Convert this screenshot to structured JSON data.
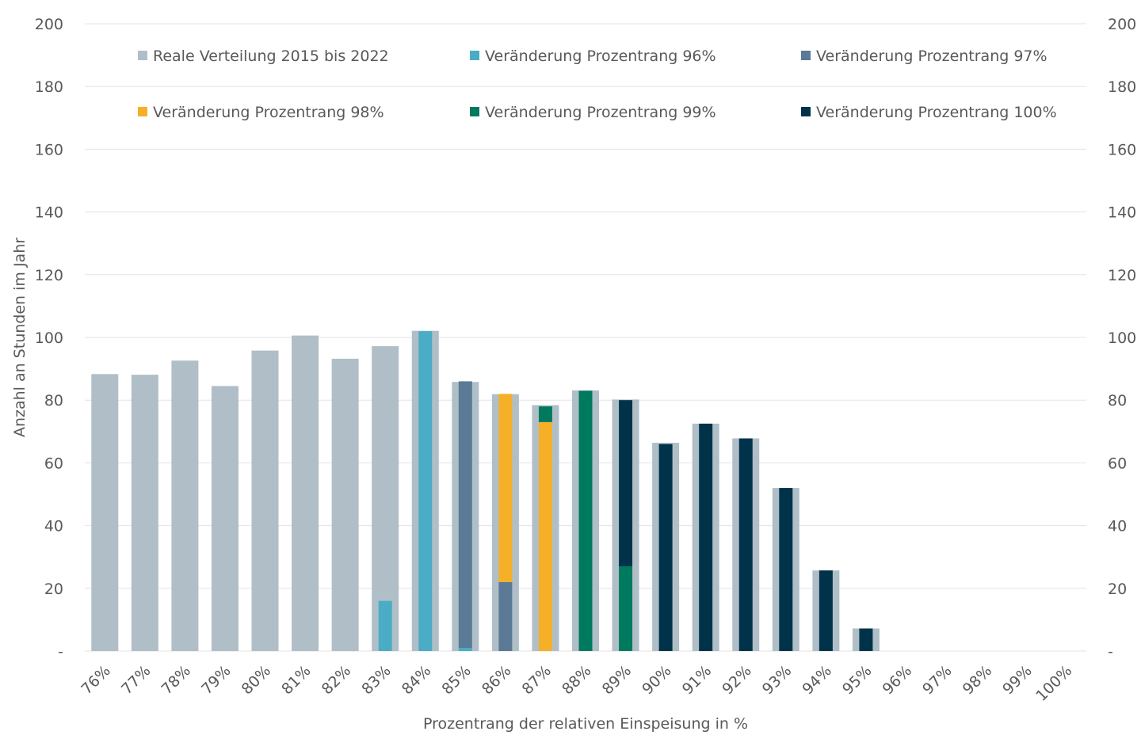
{
  "chart_data": {
    "type": "bar",
    "title": "",
    "xlabel": "Prozentrang der relativen Einspeisung in %",
    "ylabel": "Anzahl an Stunden im Jahr",
    "ylim": [
      0,
      200
    ],
    "yticks": [
      0,
      20,
      40,
      60,
      80,
      100,
      120,
      140,
      160,
      180,
      200
    ],
    "ytick_labels": [
      "-",
      "20",
      "40",
      "60",
      "80",
      "100",
      "120",
      "140",
      "160",
      "180",
      "200"
    ],
    "secondary_y_axis": true,
    "grid": true,
    "legend_position": "top",
    "categories": [
      "76%",
      "77%",
      "78%",
      "79%",
      "80%",
      "81%",
      "82%",
      "83%",
      "84%",
      "85%",
      "86%",
      "87%",
      "88%",
      "89%",
      "90%",
      "91%",
      "92%",
      "93%",
      "94%",
      "95%",
      "96%",
      "97%",
      "98%",
      "99%",
      "100%"
    ],
    "real_distribution": {
      "name": "Reale Verteilung 2015 bis 2022",
      "color": "#b0bfc7",
      "values": [
        88.3,
        88.1,
        92.6,
        84.5,
        95.8,
        100.6,
        93.2,
        97.2,
        102.1,
        85.8,
        81.9,
        78.4,
        83.1,
        80.2,
        66.4,
        72.5,
        67.8,
        52.0,
        25.7,
        7.2,
        0,
        0,
        0,
        0,
        0
      ]
    },
    "change_series": [
      {
        "name": "Veränderung Prozentrang 96%",
        "color": "#4bacc6",
        "values": [
          0,
          0,
          0,
          0,
          0,
          0,
          0,
          16,
          102,
          1,
          0,
          0,
          0,
          0,
          0,
          0,
          0,
          0,
          0,
          0,
          0,
          0,
          0,
          0,
          0
        ]
      },
      {
        "name": "Veränderung Prozentrang 97%",
        "color": "#5a7a96",
        "values": [
          0,
          0,
          0,
          0,
          0,
          0,
          0,
          0,
          0,
          85,
          22,
          0,
          0,
          0,
          0,
          0,
          0,
          0,
          0,
          0,
          0,
          0,
          0,
          0,
          0
        ]
      },
      {
        "name": "Veränderung Prozentrang 98%",
        "color": "#f5b027",
        "values": [
          0,
          0,
          0,
          0,
          0,
          0,
          0,
          0,
          0,
          0,
          60,
          73,
          0,
          0,
          0,
          0,
          0,
          0,
          0,
          0,
          0,
          0,
          0,
          0,
          0
        ]
      },
      {
        "name": "Veränderung Prozentrang 99%",
        "color": "#007a5e",
        "values": [
          0,
          0,
          0,
          0,
          0,
          0,
          0,
          0,
          0,
          0,
          0,
          5,
          83,
          27,
          0,
          0,
          0,
          0,
          0,
          0,
          0,
          0,
          0,
          0,
          0
        ]
      },
      {
        "name": "Veränderung Prozentrang 100%",
        "color": "#00334a",
        "values": [
          0,
          0,
          0,
          0,
          0,
          0,
          0,
          0,
          0,
          0,
          0,
          0,
          0,
          53,
          66,
          72.5,
          67.8,
          52,
          25.7,
          7.2,
          0,
          0,
          0,
          0,
          0
        ]
      }
    ]
  }
}
